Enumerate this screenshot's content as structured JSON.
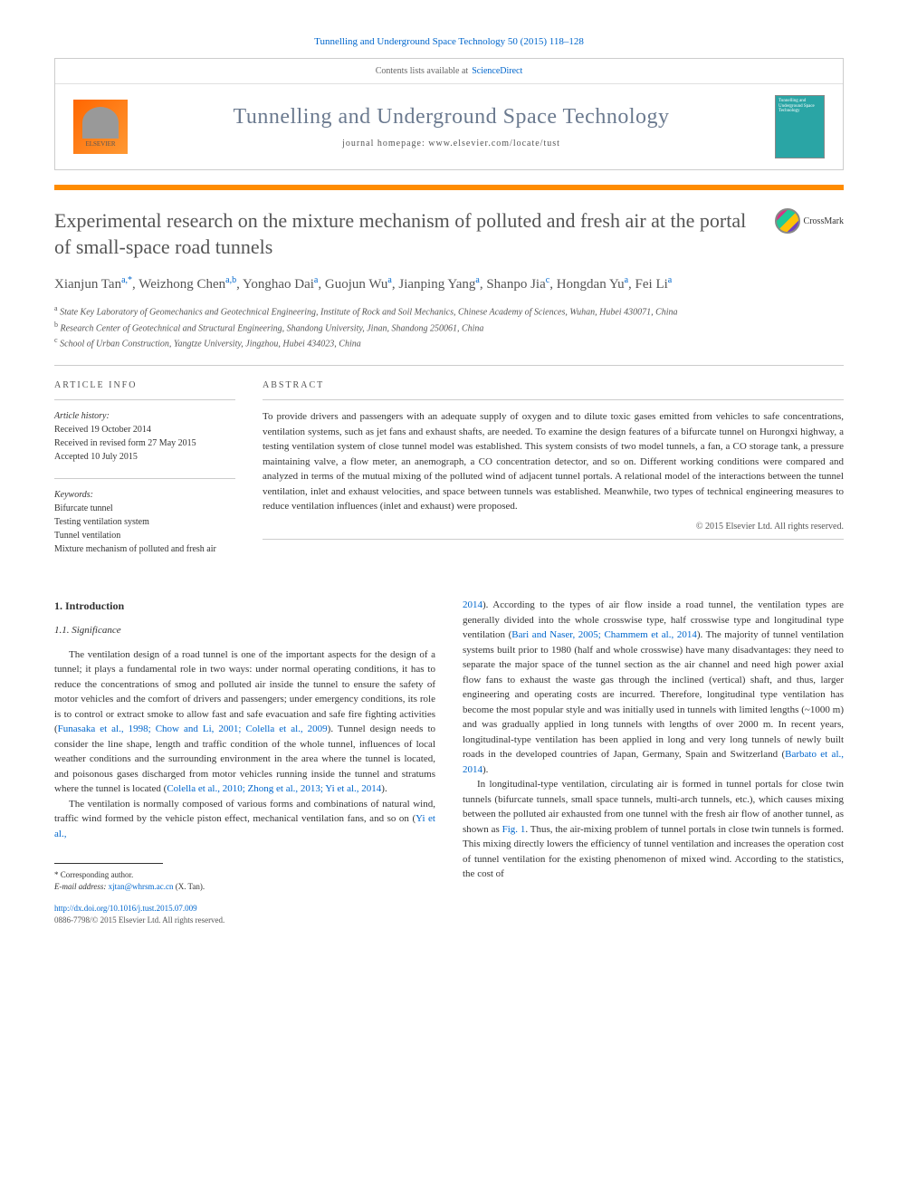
{
  "citation": "Tunnelling and Underground Space Technology 50 (2015) 118–128",
  "contents_prefix": "Contents lists available at",
  "contents_link": "ScienceDirect",
  "journal_name": "Tunnelling and Underground Space Technology",
  "journal_homepage_label": "journal homepage: www.elsevier.com/locate/tust",
  "publisher_name": "ELSEVIER",
  "cover_text": "Tunnelling and Underground Space Technology",
  "article_title": "Experimental research on the mixture mechanism of polluted and fresh air at the portal of small-space road tunnels",
  "crossmark_label": "CrossMark",
  "authors_html": "Xianjun Tan<sup>a,*</sup>, Weizhong Chen<sup>a,b</sup>, Yonghao Dai<sup>a</sup>, Guojun Wu<sup>a</sup>, Jianping Yang<sup>a</sup>, Shanpo Jia<sup>c</sup>, Hongdan Yu<sup>a</sup>, Fei Li<sup>a</sup>",
  "affiliations": {
    "a": "State Key Laboratory of Geomechanics and Geotechnical Engineering, Institute of Rock and Soil Mechanics, Chinese Academy of Sciences, Wuhan, Hubei 430071, China",
    "b": "Research Center of Geotechnical and Structural Engineering, Shandong University, Jinan, Shandong 250061, China",
    "c": "School of Urban Construction, Yangtze University, Jingzhou, Hubei 434023, China"
  },
  "info_heading": "ARTICLE INFO",
  "abstract_heading": "ABSTRACT",
  "history_label": "Article history:",
  "history": {
    "received": "Received 19 October 2014",
    "revised": "Received in revised form 27 May 2015",
    "accepted": "Accepted 10 July 2015"
  },
  "keywords_label": "Keywords:",
  "keywords": [
    "Bifurcate tunnel",
    "Testing ventilation system",
    "Tunnel ventilation",
    "Mixture mechanism of polluted and fresh air"
  ],
  "abstract_text": "To provide drivers and passengers with an adequate supply of oxygen and to dilute toxic gases emitted from vehicles to safe concentrations, ventilation systems, such as jet fans and exhaust shafts, are needed. To examine the design features of a bifurcate tunnel on Hurongxi highway, a testing ventilation system of close tunnel model was established. This system consists of two model tunnels, a fan, a CO storage tank, a pressure maintaining valve, a flow meter, an anemograph, a CO concentration detector, and so on. Different working conditions were compared and analyzed in terms of the mutual mixing of the polluted wind of adjacent tunnel portals. A relational model of the interactions between the tunnel ventilation, inlet and exhaust velocities, and space between tunnels was established. Meanwhile, two types of technical engineering measures to reduce ventilation influences (inlet and exhaust) were proposed.",
  "copyright": "© 2015 Elsevier Ltd. All rights reserved.",
  "section1_heading": "1. Introduction",
  "section11_heading": "1.1. Significance",
  "body": {
    "p1": "The ventilation design of a road tunnel is one of the important aspects for the design of a tunnel; it plays a fundamental role in two ways: under normal operating conditions, it has to reduce the concentrations of smog and polluted air inside the tunnel to ensure the safety of motor vehicles and the comfort of drivers and passengers; under emergency conditions, its role is to control or extract smoke to allow fast and safe evacuation and safe fire fighting activities (",
    "p1_cite1": "Funasaka et al., 1998; Chow and Li, 2001; Colella et al., 2009",
    "p1_cont": "). Tunnel design needs to consider the line shape, length and traffic condition of the whole tunnel, influences of local weather conditions and the surrounding environment in the area where the tunnel is located, and poisonous gases discharged from motor vehicles running inside the tunnel and stratums where the tunnel is located (",
    "p1_cite2": "Colella et al., 2010; Zhong et al., 2013; Yi et al., 2014",
    "p1_end": ").",
    "p2": "The ventilation is normally composed of various forms and combinations of natural wind, traffic wind formed by the vehicle piston effect, mechanical ventilation fans, and so on (",
    "p2_cite": "Yi et al.,",
    "p3_cite": "2014",
    "p3": "). According to the types of air flow inside a road tunnel, the ventilation types are generally divided into the whole crosswise type, half crosswise type and longitudinal type ventilation (",
    "p3_cite2": "Bari and Naser, 2005; Chammem et al., 2014",
    "p3_cont": "). The majority of tunnel ventilation systems built prior to 1980 (half and whole crosswise) have many disadvantages: they need to separate the major space of the tunnel section as the air channel and need high power axial flow fans to exhaust the waste gas through the inclined (vertical) shaft, and thus, larger engineering and operating costs are incurred. Therefore, longitudinal type ventilation has become the most popular style and was initially used in tunnels with limited lengths (~1000 m) and was gradually applied in long tunnels with lengths of over 2000 m. In recent years, longitudinal-type ventilation has been applied in long and very long tunnels of newly built roads in the developed countries of Japan, Germany, Spain and Switzerland (",
    "p3_cite3": "Barbato et al., 2014",
    "p3_end": ").",
    "p4": "In longitudinal-type ventilation, circulating air is formed in tunnel portals for close twin tunnels (bifurcate tunnels, small space tunnels, multi-arch tunnels, etc.), which causes mixing between the polluted air exhausted from one tunnel with the fresh air flow of another tunnel, as shown as ",
    "p4_cite": "Fig. 1",
    "p4_cont": ". Thus, the air-mixing problem of tunnel portals in close twin tunnels is formed. This mixing directly lowers the efficiency of tunnel ventilation and increases the operation cost of tunnel ventilation for the existing phenomenon of mixed wind. According to the statistics, the cost of"
  },
  "corresponding_label": "* Corresponding author.",
  "email_label": "E-mail address:",
  "email": "xjtan@whrsm.ac.cn",
  "email_name": "(X. Tan).",
  "doi_url": "http://dx.doi.org/10.1016/j.tust.2015.07.009",
  "issn": "0886-7798/© 2015 Elsevier Ltd. All rights reserved.",
  "colors": {
    "link": "#0066cc",
    "orange_bar": "#ff8c00",
    "journal_title": "#6b7a8f",
    "cover_bg": "#2aa5a5"
  }
}
